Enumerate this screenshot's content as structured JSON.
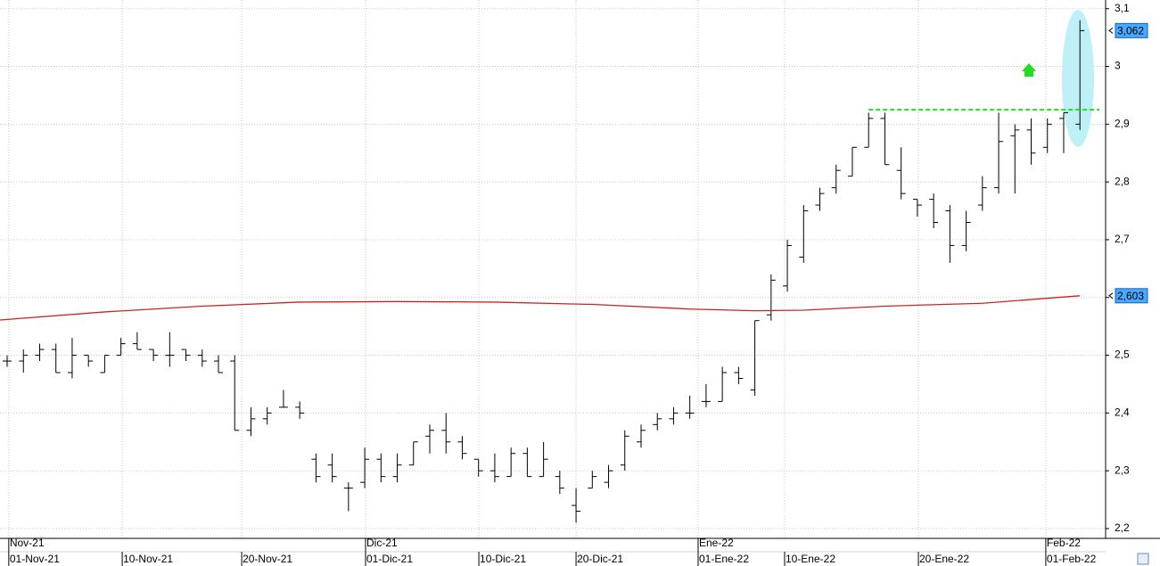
{
  "chart_data": {
    "type": "ohlc",
    "xlim": [
      -0.44,
      67.58
    ],
    "ylim": [
      2.183,
      3.115
    ],
    "yticks": [
      {
        "value": 3.1,
        "label": "3,1"
      },
      3,
      {
        "value": 2.9,
        "label": "2,9"
      },
      {
        "value": 2.8,
        "label": "2,8"
      },
      {
        "value": 2.7,
        "label": "2,7"
      },
      {
        "value": 2.6,
        "label": "2,6"
      },
      {
        "value": 2.5,
        "label": "2,5"
      },
      {
        "value": 2.4,
        "label": "2,4"
      },
      {
        "value": 2.3,
        "label": "2,3"
      },
      {
        "value": 2.2,
        "label": "2,2"
      }
    ],
    "xticks": [
      {
        "value": 0.1,
        "label": "01-Nov-21"
      },
      {
        "value": 7.08,
        "label": "10-Nov-21"
      },
      {
        "value": 14.43,
        "label": "20-Nov-21"
      },
      {
        "value": 22.05,
        "label": "01-Dic-21"
      },
      {
        "value": 29.02,
        "label": "10-Dic-21"
      },
      {
        "value": 35.0,
        "label": "20-Dic-21"
      },
      {
        "value": 42.51,
        "label": "01-Ene-22"
      },
      {
        "value": 47.83,
        "label": "10-Ene-22"
      },
      {
        "value": 56.06,
        "label": "20-Ene-22"
      },
      {
        "value": 63.9,
        "label": "01-Feb-22"
      }
    ],
    "month_ticks": [
      {
        "value": 0.1,
        "label": "Nov-21"
      },
      {
        "value": 22.05,
        "label": "Dic-21"
      },
      {
        "value": 42.51,
        "label": "Ene-22"
      },
      {
        "value": 63.9,
        "label": "Feb-22"
      }
    ],
    "grid": true,
    "color": "#000000",
    "open": [
      2.49,
      2.49,
      2.5,
      2.51,
      2.47,
      2.5,
      2.47,
      2.5,
      2.52,
      2.51,
      2.5,
      2.51,
      2.5,
      2.49,
      2.49,
      2.37,
      2.39,
      2.41,
      2.41,
      2.32,
      2.31,
      2.27,
      2.28,
      2.32,
      2.29,
      2.31,
      2.36,
      2.37,
      2.35,
      2.32,
      2.3,
      2.29,
      2.33,
      2.29,
      2.29,
      2.24,
      2.27,
      2.28,
      2.31,
      2.35,
      2.38,
      2.39,
      2.4,
      2.42,
      2.42,
      2.47,
      2.44,
      2.57,
      2.62,
      2.67,
      2.76,
      2.79,
      2.81,
      2.86,
      2.91,
      2.82,
      2.77,
      2.77,
      2.75,
      2.69,
      2.76,
      2.79,
      2.88,
      2.89,
      2.86,
      2.91,
      2.9
    ],
    "high": [
      2.5,
      2.51,
      2.52,
      2.52,
      2.53,
      2.5,
      2.5,
      2.53,
      2.54,
      2.51,
      2.54,
      2.51,
      2.51,
      2.5,
      2.5,
      2.41,
      2.41,
      2.44,
      2.42,
      2.33,
      2.33,
      2.28,
      2.34,
      2.33,
      2.33,
      2.35,
      2.38,
      2.4,
      2.36,
      2.32,
      2.33,
      2.34,
      2.34,
      2.35,
      2.3,
      2.27,
      2.3,
      2.31,
      2.37,
      2.38,
      2.4,
      2.41,
      2.43,
      2.45,
      2.48,
      2.48,
      2.56,
      2.64,
      2.7,
      2.76,
      2.79,
      2.83,
      2.86,
      2.92,
      2.92,
      2.86,
      2.77,
      2.78,
      2.76,
      2.75,
      2.81,
      2.92,
      2.9,
      2.91,
      2.91,
      2.92,
      3.08
    ],
    "low": [
      2.48,
      2.47,
      2.49,
      2.47,
      2.46,
      2.48,
      2.47,
      2.5,
      2.51,
      2.49,
      2.48,
      2.49,
      2.48,
      2.47,
      2.37,
      2.36,
      2.38,
      2.41,
      2.39,
      2.28,
      2.28,
      2.23,
      2.27,
      2.28,
      2.28,
      2.31,
      2.33,
      2.33,
      2.32,
      2.29,
      2.28,
      2.29,
      2.29,
      2.29,
      2.26,
      2.21,
      2.27,
      2.27,
      2.3,
      2.34,
      2.37,
      2.38,
      2.39,
      2.41,
      2.42,
      2.45,
      2.43,
      2.56,
      2.61,
      2.66,
      2.75,
      2.78,
      2.81,
      2.86,
      2.83,
      2.77,
      2.74,
      2.72,
      2.66,
      2.68,
      2.75,
      2.78,
      2.78,
      2.83,
      2.85,
      2.85,
      2.89
    ],
    "close": [
      2.49,
      2.5,
      2.51,
      2.47,
      2.5,
      2.49,
      2.5,
      2.52,
      2.51,
      2.5,
      2.5,
      2.5,
      2.49,
      2.47,
      2.37,
      2.39,
      2.4,
      2.41,
      2.4,
      2.29,
      2.29,
      2.27,
      2.32,
      2.29,
      2.31,
      2.35,
      2.37,
      2.35,
      2.33,
      2.3,
      2.29,
      2.33,
      2.29,
      2.32,
      2.27,
      2.23,
      2.29,
      2.3,
      2.36,
      2.37,
      2.39,
      2.4,
      2.4,
      2.42,
      2.47,
      2.46,
      2.56,
      2.63,
      2.69,
      2.75,
      2.78,
      2.82,
      2.86,
      2.91,
      2.83,
      2.78,
      2.76,
      2.73,
      2.69,
      2.73,
      2.79,
      2.87,
      2.89,
      2.85,
      2.9,
      2.92,
      3.062
    ],
    "ma": {
      "color": "#cc2222",
      "x": [
        -0.44,
        6,
        12,
        18,
        24,
        30,
        36,
        42,
        46,
        49,
        54,
        60,
        66
      ],
      "values": [
        2.561,
        2.575,
        2.585,
        2.592,
        2.593,
        2.592,
        2.588,
        2.58,
        2.577,
        2.578,
        2.585,
        2.59,
        2.603
      ]
    },
    "level": {
      "value": 2.925,
      "color": "#22dd22",
      "x": [
        53,
        67.2
      ]
    },
    "price_labels": [
      {
        "value": 3.062,
        "label": "3,062"
      },
      {
        "value": 2.603,
        "label": "2,603"
      }
    ]
  }
}
